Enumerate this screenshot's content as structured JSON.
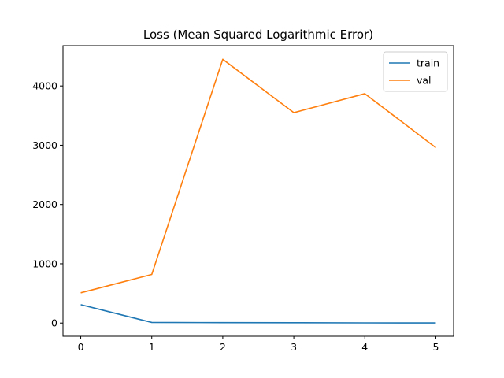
{
  "chart_data": {
    "type": "line",
    "title": "Loss (Mean Squared Logarithmic Error)",
    "xlabel": "",
    "ylabel": "",
    "x": [
      0,
      1,
      2,
      3,
      4,
      5
    ],
    "xticks": [
      "0",
      "1",
      "2",
      "3",
      "4",
      "5"
    ],
    "yticks": [
      "0",
      "1000",
      "2000",
      "3000",
      "4000"
    ],
    "xlim": [
      -0.25,
      5.25
    ],
    "ylim": [
      -223,
      4680
    ],
    "grid": false,
    "legend_position": "top-right",
    "series": [
      {
        "name": "train",
        "color": "#1f77b4",
        "values": [
          310,
          10,
          7,
          5,
          3,
          2
        ]
      },
      {
        "name": "val",
        "color": "#ff7f0e",
        "values": [
          510,
          820,
          4450,
          3550,
          3870,
          2960
        ]
      }
    ]
  }
}
